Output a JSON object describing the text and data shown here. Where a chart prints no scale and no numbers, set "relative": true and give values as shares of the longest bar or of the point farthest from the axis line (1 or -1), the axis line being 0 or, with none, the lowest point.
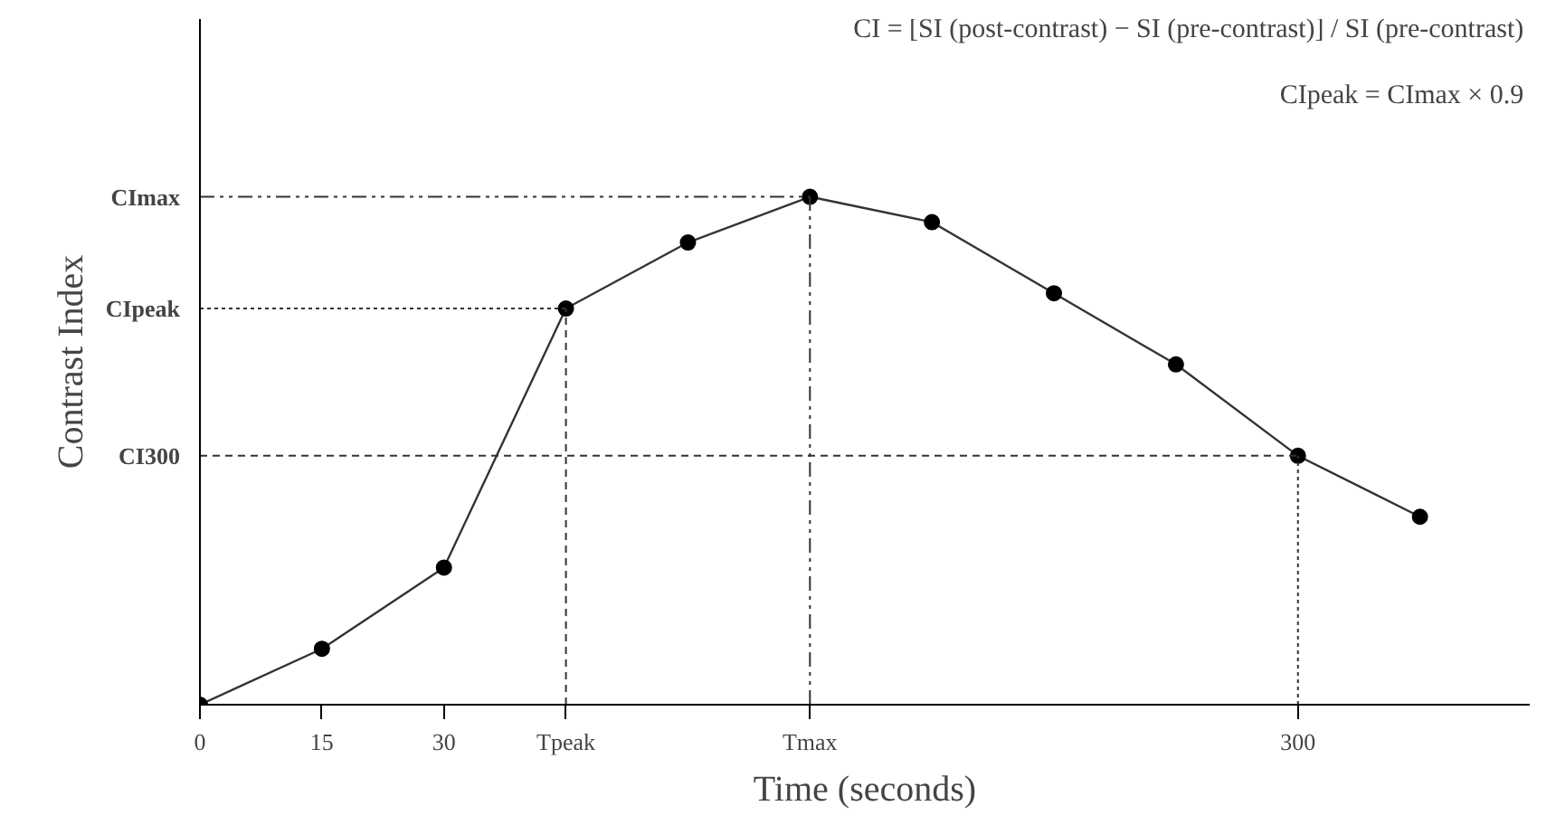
{
  "chart_data": {
    "type": "line",
    "xlabel": "Time (seconds)",
    "ylabel": "Contrast Index",
    "relative": true,
    "categories": [
      "0",
      "15",
      "30",
      "Tpeak",
      null,
      "Tmax",
      null,
      null,
      null,
      "300",
      null
    ],
    "series": [
      {
        "color": "#333333",
        "values": [
          0,
          0.11,
          0.27,
          0.78,
          0.91,
          1.0,
          0.95,
          0.81,
          0.67,
          0.49,
          0.37
        ]
      }
    ],
    "marker": "circle",
    "line_style": "solid",
    "grid": false,
    "ref_lines": [
      {
        "axis": "y",
        "value": 1.0,
        "label": "CImax",
        "line_style": "dashdot"
      },
      {
        "axis": "y",
        "value": 0.78,
        "label": "CIpeak",
        "line_style": "dotted"
      },
      {
        "axis": "y",
        "value": 0.49,
        "label": "CI300",
        "line_style": "dashed"
      },
      {
        "axis": "x",
        "value": "Tpeak",
        "label": null,
        "line_style": "dashed"
      },
      {
        "axis": "x",
        "value": "Tmax",
        "label": null,
        "line_style": "dashdot"
      },
      {
        "axis": "x",
        "value": "300",
        "label": null,
        "line_style": "dotted"
      }
    ],
    "annotations": [
      "CI = [SI (post-contrast) − SI (pre-contrast)] / SI (pre-contrast)",
      "CIpeak = CImax × 0.9"
    ]
  }
}
